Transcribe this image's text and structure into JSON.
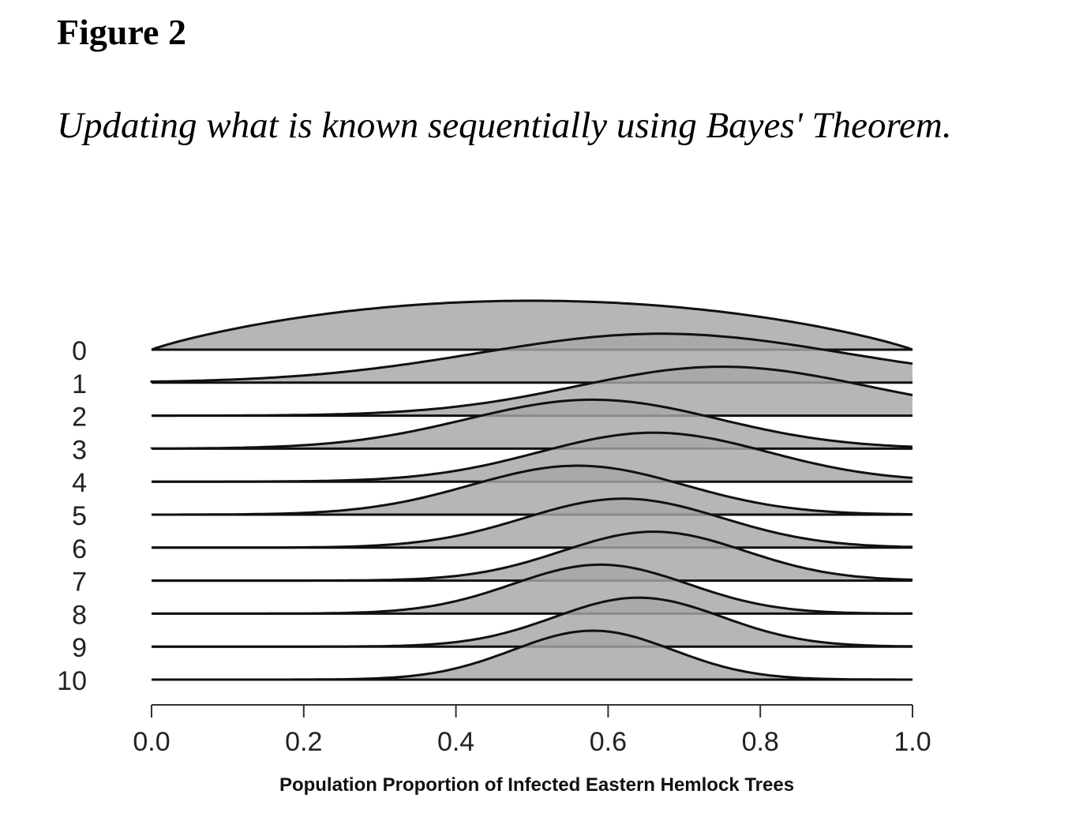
{
  "figure": {
    "label": "Figure 2",
    "caption": "Updating what is known sequentially using Bayes' Theorem."
  },
  "chart_data": {
    "type": "area",
    "subtype": "ridgeline",
    "xlabel": "Population Proportion of Infected Eastern Hemlock Trees",
    "ylabel": "",
    "xlim": [
      0,
      1
    ],
    "x_ticks": [
      "0.0",
      "0.2",
      "0.4",
      "0.6",
      "0.8",
      "1.0"
    ],
    "y_categories": [
      "0",
      "1",
      "2",
      "3",
      "4",
      "5",
      "6",
      "7",
      "8",
      "9",
      "10"
    ],
    "fill_color": "#a6a6a6",
    "line_color": "#111111",
    "grid": false,
    "legend": "none",
    "series": [
      {
        "category": "0",
        "mode": 0.5,
        "peak_x": 0.5
      },
      {
        "category": "1",
        "mode": 0.67,
        "peak_x": 0.67
      },
      {
        "category": "2",
        "mode": 0.75,
        "peak_x": 0.75
      },
      {
        "category": "3",
        "mode": 0.58,
        "peak_x": 0.58
      },
      {
        "category": "4",
        "mode": 0.66,
        "peak_x": 0.66
      },
      {
        "category": "5",
        "mode": 0.56,
        "peak_x": 0.56
      },
      {
        "category": "6",
        "mode": 0.62,
        "peak_x": 0.62
      },
      {
        "category": "7",
        "mode": 0.66,
        "peak_x": 0.66
      },
      {
        "category": "8",
        "mode": 0.59,
        "peak_x": 0.59
      },
      {
        "category": "9",
        "mode": 0.64,
        "peak_x": 0.64
      },
      {
        "category": "10",
        "mode": 0.58,
        "peak_x": 0.58
      }
    ]
  }
}
